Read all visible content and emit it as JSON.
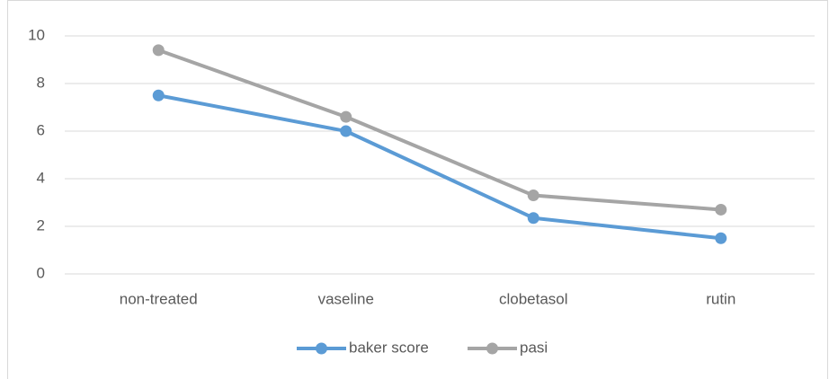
{
  "chart_data": {
    "type": "line",
    "categories": [
      "non-treated",
      "vaseline",
      "clobetasol",
      "rutin"
    ],
    "series": [
      {
        "name": "baker score",
        "color": "#5b9bd5",
        "values": [
          7.5,
          6,
          2.35,
          1.5
        ]
      },
      {
        "name": "pasi",
        "color": "#a5a5a5",
        "values": [
          9.4,
          6.6,
          3.3,
          2.7
        ]
      }
    ],
    "ylim": [
      0,
      10
    ],
    "yticks": [
      0,
      2,
      4,
      6,
      8,
      10
    ],
    "grid": true,
    "legend": "bottom"
  }
}
